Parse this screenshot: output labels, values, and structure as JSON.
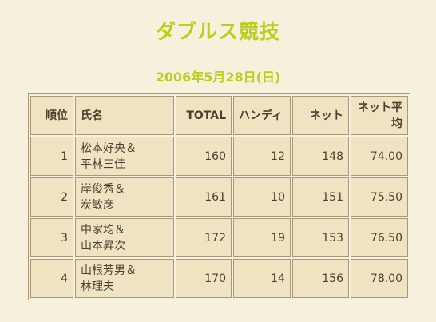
{
  "page": {
    "title": "ダブルス競技",
    "date": "2006年5月28日(日)"
  },
  "table": {
    "headers": [
      "順位",
      "氏名",
      "TOTAL",
      "ハンディ",
      "ネット",
      "ネット平均"
    ],
    "rows": [
      {
        "rank": "1",
        "name1": "松本好央＆",
        "name2": "平林三佳",
        "total": "160",
        "handicap": "12",
        "net": "148",
        "net_avg": "74.00"
      },
      {
        "rank": "2",
        "name1": "岸俊秀＆",
        "name2": "炭敏彦",
        "total": "161",
        "handicap": "10",
        "net": "151",
        "net_avg": "75.50"
      },
      {
        "rank": "3",
        "name1": "中家均＆",
        "name2": "山本昇次",
        "total": "172",
        "handicap": "19",
        "net": "153",
        "net_avg": "76.50"
      },
      {
        "rank": "4",
        "name1": "山根芳男＆",
        "name2": "林理夫",
        "total": "170",
        "handicap": "14",
        "net": "156",
        "net_avg": "78.00"
      }
    ]
  },
  "colors": {
    "background": "#f7f0dc",
    "cell": "#efe4c2",
    "accent": "#b9cf1c",
    "border": "#a89878",
    "text": "#4a4030"
  }
}
